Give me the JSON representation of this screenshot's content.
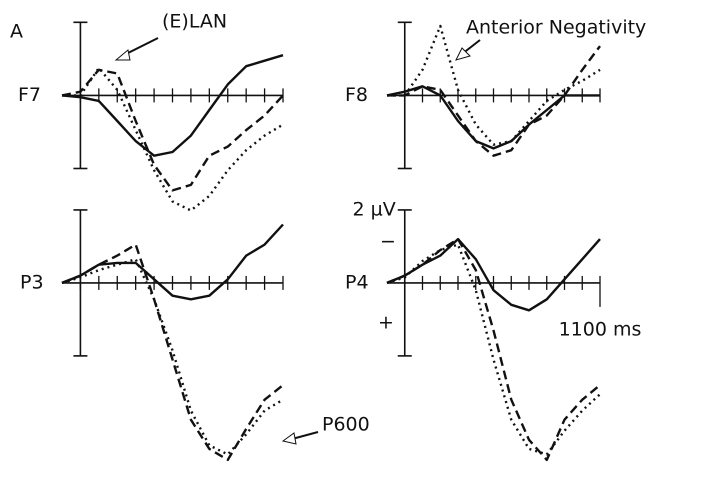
{
  "panel_label": "A",
  "chart_data": [
    {
      "type": "line",
      "title": "F7",
      "annotations": [
        "(E)LAN"
      ],
      "x": [
        -100,
        0,
        100,
        200,
        300,
        400,
        500,
        600,
        700,
        800,
        900,
        1000,
        1100
      ],
      "xlim": [
        -100,
        1100
      ],
      "xticks": [
        0,
        100,
        200,
        300,
        400,
        500,
        600,
        700,
        800,
        900,
        1000,
        1100
      ],
      "ylim": [
        -2.2,
        3.3
      ],
      "yticks": [
        -2,
        2
      ],
      "series": [
        {
          "color": "#111111",
          "style": "solid",
          "values": [
            0,
            0.05,
            0.15,
            0.7,
            1.25,
            1.65,
            1.55,
            1.1,
            0.4,
            -0.3,
            -0.8,
            -0.95,
            -1.1
          ]
        },
        {
          "color": "#111111",
          "style": "dashed",
          "values": [
            0,
            -0.1,
            -0.7,
            -0.6,
            0.7,
            1.9,
            2.6,
            2.45,
            1.65,
            1.4,
            0.95,
            0.55,
            0
          ]
        },
        {
          "color": "#111111",
          "style": "dotted",
          "values": [
            0,
            0,
            -0.75,
            -0.15,
            0.95,
            2.05,
            2.9,
            3.15,
            2.75,
            2.05,
            1.5,
            1.1,
            0.8
          ]
        }
      ]
    },
    {
      "type": "line",
      "title": "F8",
      "annotations": [
        "Anterior Negativity"
      ],
      "x": [
        -100,
        0,
        100,
        200,
        300,
        400,
        500,
        600,
        700,
        800,
        900,
        1000,
        1100
      ],
      "xlim": [
        -100,
        1100
      ],
      "xticks": [
        0,
        100,
        200,
        300,
        400,
        500,
        600,
        700,
        800,
        900,
        1000,
        1100
      ],
      "ylim": [
        -2.2,
        3.3
      ],
      "yticks": [
        -2,
        2
      ],
      "series": [
        {
          "color": "#111111",
          "style": "solid",
          "values": [
            0,
            -0.1,
            -0.25,
            0,
            0.7,
            1.25,
            1.45,
            1.25,
            0.8,
            0.4,
            0,
            0,
            0
          ]
        },
        {
          "color": "#111111",
          "style": "dashed",
          "values": [
            0,
            0,
            -0.25,
            -0.15,
            0.55,
            1.25,
            1.65,
            1.5,
            0.8,
            0.55,
            0,
            -0.7,
            -1.35
          ]
        },
        {
          "color": "#111111",
          "style": "dotted",
          "values": [
            0,
            0,
            -0.7,
            -1.9,
            -0.15,
            0.8,
            1.35,
            1.25,
            0.7,
            0.15,
            -0.15,
            -0.4,
            -0.7
          ]
        }
      ]
    },
    {
      "type": "line",
      "title": "P3",
      "annotations": [
        "P600"
      ],
      "x": [
        -100,
        0,
        100,
        200,
        300,
        400,
        500,
        600,
        700,
        800,
        900,
        1000,
        1100
      ],
      "xlim": [
        -100,
        1100
      ],
      "xticks": [
        0,
        100,
        200,
        300,
        400,
        500,
        600,
        700,
        800,
        900,
        1000,
        1100
      ],
      "ylim": [
        -2.3,
        5.1
      ],
      "yticks": [
        -2,
        2
      ],
      "series": [
        {
          "color": "#111111",
          "style": "solid",
          "values": [
            0,
            -0.2,
            -0.5,
            -0.55,
            -0.55,
            -0.1,
            0.35,
            0.45,
            0.35,
            -0.1,
            -0.75,
            -1.05,
            -1.6
          ]
        },
        {
          "color": "#111111",
          "style": "dashed",
          "values": [
            0,
            -0.2,
            -0.5,
            -0.75,
            -1.05,
            0.45,
            2.1,
            3.75,
            4.55,
            4.85,
            4.0,
            3.2,
            2.8
          ]
        },
        {
          "color": "#111111",
          "style": "dotted",
          "values": [
            0,
            -0.15,
            -0.35,
            -0.5,
            -0.65,
            0.45,
            1.85,
            3.5,
            4.45,
            4.7,
            4.15,
            3.5,
            3.2
          ]
        }
      ]
    },
    {
      "type": "line",
      "title": "P4",
      "annotations": [
        "−",
        "+"
      ],
      "x": [
        -100,
        0,
        100,
        200,
        300,
        400,
        500,
        600,
        700,
        800,
        900,
        1000,
        1100
      ],
      "xlim": [
        -100,
        1100
      ],
      "xticks": [
        0,
        100,
        200,
        300,
        400,
        500,
        600,
        700,
        800,
        900,
        1000,
        {
          "value": 1100,
          "label": "1100 ms"
        }
      ],
      "ylim": [
        -2.3,
        5.1
      ],
      "yticks": [
        {
          "value": -2,
          "label": "2 µV"
        },
        2
      ],
      "series": [
        {
          "color": "#111111",
          "style": "solid",
          "values": [
            0,
            -0.2,
            -0.5,
            -0.75,
            -1.2,
            -0.65,
            0.2,
            0.6,
            0.75,
            0.45,
            -0.1,
            -0.65,
            -1.2
          ]
        },
        {
          "color": "#111111",
          "style": "dashed",
          "values": [
            0,
            -0.2,
            -0.5,
            -0.9,
            -1.2,
            -0.35,
            1.3,
            3.2,
            4.3,
            4.85,
            3.75,
            3.2,
            2.8
          ]
        },
        {
          "color": "#111111",
          "style": "dotted",
          "values": [
            0,
            -0.15,
            -0.6,
            -0.9,
            -1.05,
            0.2,
            2.1,
            3.75,
            4.55,
            4.7,
            4.05,
            3.5,
            3.05
          ]
        }
      ]
    }
  ]
}
